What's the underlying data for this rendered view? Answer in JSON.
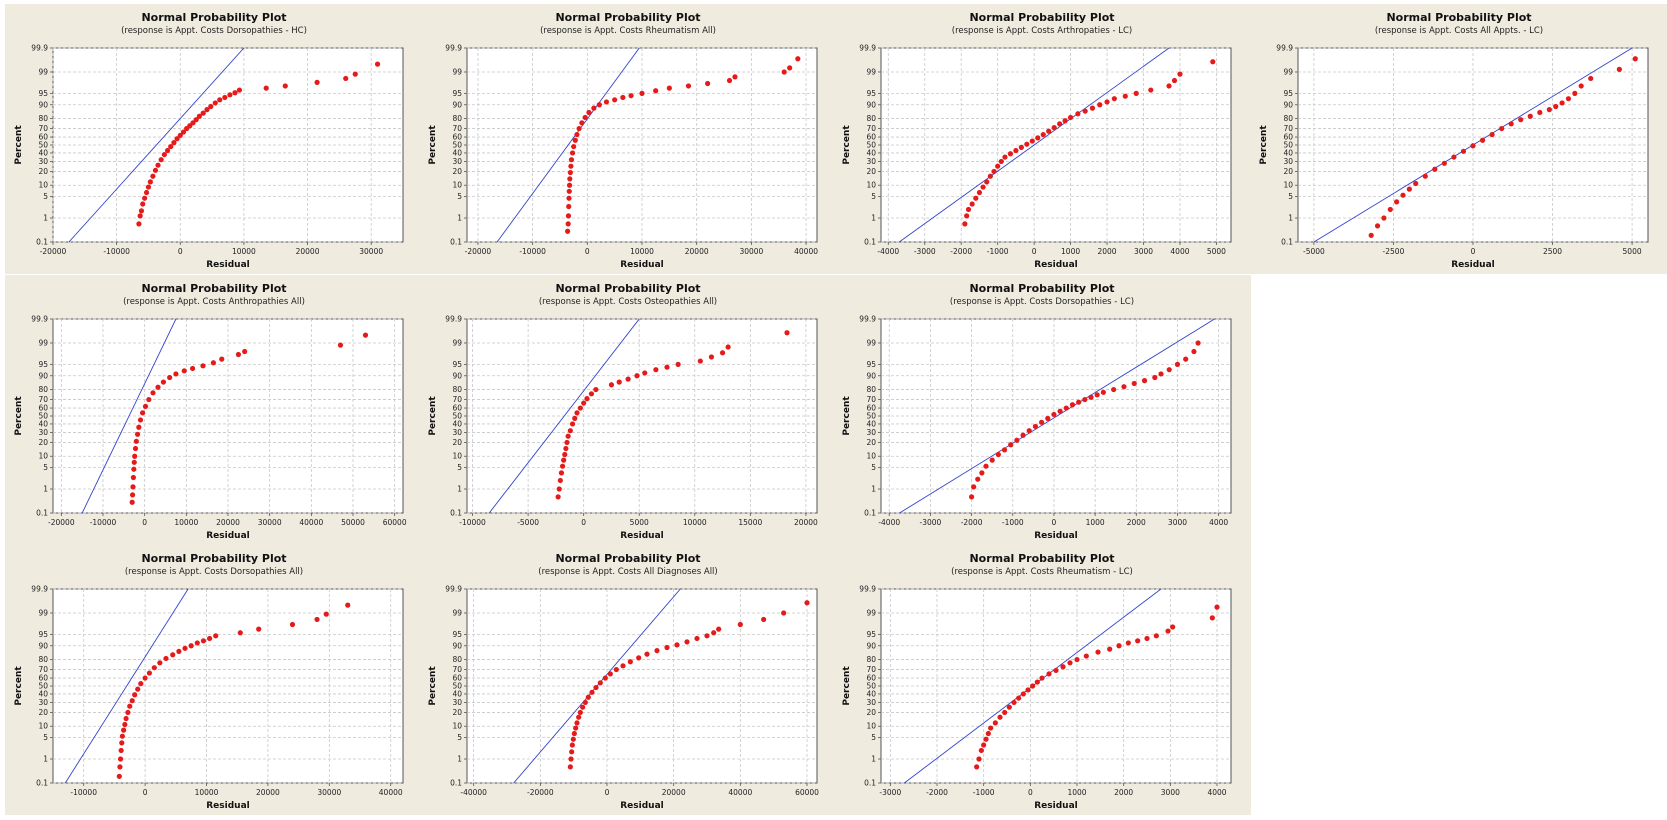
{
  "chart_data": [
    {
      "type": "scatter",
      "title": "Normal Probability Plot",
      "subtitle": "(response is Appt. Costs Dorsopathies - HC)",
      "xlabel": "Residual",
      "ylabel": "Percent",
      "xlim": [
        -20000,
        35000
      ],
      "xticks": [
        -20000,
        -10000,
        0,
        10000,
        20000,
        30000
      ],
      "ytick_labels": [
        "0.1",
        "1",
        "5",
        "10",
        "20",
        "30",
        "40",
        "50",
        "60",
        "70",
        "80",
        "90",
        "95",
        "99",
        "99.9"
      ],
      "grid": true,
      "line": {
        "x": [
          -17500,
          10000
        ],
        "y": [
          0.1,
          99.9
        ]
      },
      "points": {
        "x": [
          -6500,
          -6300,
          -6100,
          -5900,
          -5600,
          -5300,
          -5000,
          -4700,
          -4300,
          -3900,
          -3500,
          -3000,
          -2500,
          -2000,
          -1500,
          -1000,
          -500,
          0,
          500,
          1000,
          1500,
          2000,
          2500,
          3000,
          3600,
          4200,
          4800,
          5500,
          6200,
          7000,
          7800,
          8600,
          9300,
          13500,
          16500,
          21500,
          26000,
          27500,
          31000
        ],
        "y": [
          0.6,
          1.2,
          1.8,
          3,
          4.5,
          6.5,
          9,
          12,
          16,
          21,
          26,
          32,
          38,
          43,
          48,
          53,
          58,
          62,
          66,
          70,
          73,
          76,
          79,
          82,
          84.5,
          87,
          89,
          91,
          92.5,
          93.5,
          94.5,
          95.2,
          96,
          96.5,
          97,
          97.7,
          98.3,
          98.8,
          99.5
        ]
      }
    },
    {
      "type": "scatter",
      "title": "Normal Probability Plot",
      "subtitle": "(response is Appt. Costs Rheumatism All)",
      "xlabel": "Residual",
      "ylabel": "Percent",
      "xlim": [
        -22000,
        42000
      ],
      "xticks": [
        -20000,
        -10000,
        0,
        10000,
        20000,
        30000,
        40000
      ],
      "ytick_labels": [
        "0.1",
        "1",
        "5",
        "10",
        "20",
        "30",
        "40",
        "50",
        "60",
        "70",
        "80",
        "90",
        "95",
        "99",
        "99.9"
      ],
      "grid": true,
      "line": {
        "x": [
          -16500,
          9500
        ],
        "y": [
          0.1,
          99.9
        ]
      },
      "points": {
        "x": [
          -3600,
          -3500,
          -3450,
          -3400,
          -3350,
          -3300,
          -3250,
          -3200,
          -3100,
          -3000,
          -2900,
          -2700,
          -2500,
          -2200,
          -1900,
          -1500,
          -1000,
          -400,
          300,
          1200,
          2200,
          3500,
          5000,
          6500,
          8000,
          10000,
          12500,
          15000,
          18500,
          22000,
          26000,
          27000,
          36000,
          37000,
          38500
        ],
        "y": [
          0.3,
          0.6,
          1.2,
          2.5,
          4.5,
          7,
          10,
          14,
          19,
          25,
          32,
          40,
          48,
          56,
          63,
          70,
          76,
          81,
          85,
          88,
          90,
          91.5,
          92.5,
          93.5,
          94.2,
          95,
          95.8,
          96.5,
          97,
          97.5,
          98,
          98.5,
          99,
          99.3,
          99.7
        ]
      }
    },
    {
      "type": "scatter",
      "title": "Normal Probability Plot",
      "subtitle": "(response is Appt. Costs Arthropaties - LC)",
      "xlabel": "Residual",
      "ylabel": "Percent",
      "xlim": [
        -4200,
        5400
      ],
      "xticks": [
        -4000,
        -3000,
        -2000,
        -1000,
        0,
        1000,
        2000,
        3000,
        4000,
        5000
      ],
      "ytick_labels": [
        "0.1",
        "1",
        "5",
        "10",
        "20",
        "30",
        "40",
        "50",
        "60",
        "70",
        "80",
        "90",
        "95",
        "99",
        "99.9"
      ],
      "grid": true,
      "line": {
        "x": [
          -3700,
          3700
        ],
        "y": [
          0.1,
          99.9
        ]
      },
      "points": {
        "x": [
          -1900,
          -1850,
          -1800,
          -1700,
          -1600,
          -1500,
          -1400,
          -1300,
          -1200,
          -1100,
          -1000,
          -900,
          -800,
          -650,
          -500,
          -350,
          -200,
          -50,
          100,
          250,
          400,
          550,
          700,
          850,
          1000,
          1200,
          1400,
          1600,
          1800,
          2000,
          2200,
          2500,
          2800,
          3200,
          3700,
          3850,
          4000,
          4900
        ],
        "y": [
          0.6,
          1.2,
          2,
          3,
          4.5,
          6.5,
          9,
          12,
          16,
          20,
          25,
          30,
          35,
          39,
          43,
          47,
          51,
          55,
          59,
          63,
          67,
          71,
          75,
          78,
          81,
          84,
          86,
          88,
          90,
          91.5,
          93,
          94,
          95,
          96,
          97,
          98,
          98.8,
          99.6
        ]
      }
    },
    {
      "type": "scatter",
      "title": "Normal Probability Plot",
      "subtitle": "(response is Appt. Costs All Appts. - LC)",
      "xlabel": "Residual",
      "ylabel": "Percent",
      "xlim": [
        -5500,
        5500
      ],
      "xticks": [
        -5000,
        -2500,
        0,
        2500,
        5000
      ],
      "ytick_labels": [
        "0.1",
        "1",
        "5",
        "10",
        "20",
        "30",
        "40",
        "50",
        "60",
        "70",
        "80",
        "90",
        "95",
        "99",
        "99.9"
      ],
      "grid": true,
      "line": {
        "x": [
          -5000,
          5000
        ],
        "y": [
          0.1,
          99.9
        ]
      },
      "points": {
        "x": [
          -3200,
          -3000,
          -2800,
          -2600,
          -2400,
          -2200,
          -2000,
          -1800,
          -1500,
          -1200,
          -900,
          -600,
          -300,
          0,
          300,
          600,
          900,
          1200,
          1500,
          1800,
          2100,
          2400,
          2600,
          2800,
          3000,
          3200,
          3400,
          3700,
          4600,
          5100
        ],
        "y": [
          0.2,
          0.5,
          1,
          2,
          3.5,
          5.5,
          8,
          11,
          16,
          22,
          28,
          35,
          42,
          49,
          56,
          63,
          70,
          75,
          79,
          82,
          85,
          87,
          89,
          91,
          93,
          95,
          97,
          98.3,
          99.2,
          99.7
        ]
      }
    },
    {
      "type": "scatter",
      "title": "Normal Probability Plot",
      "subtitle": "(response is Appt. Costs Anthropathies All)",
      "xlabel": "Residual",
      "ylabel": "Percent",
      "xlim": [
        -22000,
        62000
      ],
      "xticks": [
        -20000,
        -10000,
        0,
        10000,
        20000,
        30000,
        40000,
        50000,
        60000
      ],
      "ytick_labels": [
        "0.1",
        "1",
        "5",
        "10",
        "20",
        "30",
        "40",
        "50",
        "60",
        "70",
        "80",
        "90",
        "95",
        "99",
        "99.9"
      ],
      "grid": true,
      "line": {
        "x": [
          -15000,
          7500
        ],
        "y": [
          0.1,
          99.9
        ]
      },
      "points": {
        "x": [
          -3000,
          -2900,
          -2800,
          -2700,
          -2600,
          -2500,
          -2400,
          -2200,
          -2000,
          -1700,
          -1400,
          -1000,
          -500,
          200,
          1000,
          2000,
          3200,
          4500,
          6000,
          7500,
          9500,
          11500,
          14000,
          16500,
          18500,
          22500,
          24000,
          47000,
          53000
        ],
        "y": [
          0.3,
          0.6,
          1.2,
          2.5,
          4.5,
          7,
          10,
          15,
          21,
          28,
          36,
          45,
          54,
          62,
          70,
          77,
          82,
          86,
          89,
          91,
          92.5,
          93.5,
          94.5,
          95.5,
          96.5,
          97.5,
          98,
          98.8,
          99.5
        ]
      }
    },
    {
      "type": "scatter",
      "title": "Normal Probability Plot",
      "subtitle": "(response is Appt. Costs Osteopathies All)",
      "xlabel": "Residual",
      "ylabel": "Percent",
      "xlim": [
        -10500,
        21000
      ],
      "xticks": [
        -10000,
        -5000,
        0,
        5000,
        10000,
        15000,
        20000
      ],
      "ytick_labels": [
        "0.1",
        "1",
        "5",
        "10",
        "20",
        "30",
        "40",
        "50",
        "60",
        "70",
        "80",
        "90",
        "95",
        "99",
        "99.9"
      ],
      "grid": true,
      "line": {
        "x": [
          -8500,
          5000
        ],
        "y": [
          0.1,
          99.9
        ]
      },
      "points": {
        "x": [
          -2300,
          -2200,
          -2100,
          -2000,
          -1900,
          -1800,
          -1700,
          -1600,
          -1500,
          -1400,
          -1200,
          -1000,
          -800,
          -600,
          -300,
          0,
          300,
          700,
          1100,
          2500,
          3200,
          4000,
          4800,
          5500,
          6500,
          7500,
          8500,
          10500,
          11500,
          12500,
          13000,
          18300
        ],
        "y": [
          0.5,
          1,
          2,
          3.5,
          5.5,
          8,
          11,
          15,
          20,
          26,
          32,
          40,
          47,
          54,
          60,
          66,
          71,
          76,
          80,
          84,
          86,
          88,
          90,
          91.5,
          93,
          94,
          95,
          96,
          97,
          97.8,
          98.6,
          99.6
        ]
      }
    },
    {
      "type": "scatter",
      "title": "Normal Probability Plot",
      "subtitle": "(response is Appt. Costs Dorsopathies - LC)",
      "xlabel": "Residual",
      "ylabel": "Percent",
      "xlim": [
        -4200,
        4300
      ],
      "xticks": [
        -4000,
        -3000,
        -2000,
        -1000,
        0,
        1000,
        2000,
        3000,
        4000
      ],
      "ytick_labels": [
        "0.1",
        "1",
        "5",
        "10",
        "20",
        "30",
        "40",
        "50",
        "60",
        "70",
        "80",
        "90",
        "95",
        "99",
        "99.9"
      ],
      "grid": true,
      "line": {
        "x": [
          -3750,
          3900
        ],
        "y": [
          0.1,
          99.9
        ]
      },
      "points": {
        "x": [
          -2000,
          -1950,
          -1850,
          -1750,
          -1650,
          -1500,
          -1350,
          -1200,
          -1050,
          -900,
          -750,
          -600,
          -450,
          -300,
          -150,
          0,
          150,
          300,
          450,
          600,
          750,
          900,
          1050,
          1200,
          1450,
          1700,
          1950,
          2200,
          2450,
          2600,
          2800,
          3000,
          3200,
          3400,
          3500
        ],
        "y": [
          0.5,
          1.2,
          2.2,
          3.5,
          5.5,
          8,
          11,
          14,
          18,
          22,
          27,
          32,
          37,
          42,
          47,
          52,
          56,
          60,
          64,
          67,
          70,
          72.5,
          75,
          77.5,
          80,
          82.5,
          85,
          87,
          89,
          91,
          93,
          95,
          96.5,
          98,
          99
        ]
      }
    },
    {
      "type": "scatter",
      "title": "Normal Probability Plot",
      "subtitle": "(response is Appt. Costs Dorsopathies All)",
      "xlabel": "Residual",
      "ylabel": "Percent",
      "xlim": [
        -15000,
        42000
      ],
      "xticks": [
        -10000,
        0,
        10000,
        20000,
        30000,
        40000
      ],
      "ytick_labels": [
        "0.1",
        "1",
        "5",
        "10",
        "20",
        "30",
        "40",
        "50",
        "60",
        "70",
        "80",
        "90",
        "95",
        "99",
        "99.9"
      ],
      "grid": true,
      "line": {
        "x": [
          -13000,
          7000
        ],
        "y": [
          0.1,
          99.9
        ]
      },
      "points": {
        "x": [
          -4200,
          -4100,
          -4000,
          -3900,
          -3800,
          -3700,
          -3500,
          -3300,
          -3100,
          -2800,
          -2500,
          -2100,
          -1700,
          -1200,
          -700,
          0,
          700,
          1500,
          2400,
          3400,
          4500,
          5500,
          6500,
          7500,
          8500,
          9500,
          10500,
          11500,
          15500,
          18500,
          24000,
          28000,
          29500,
          33000
        ],
        "y": [
          0.2,
          0.5,
          1,
          2,
          3.5,
          5.5,
          8,
          11,
          15,
          20,
          26,
          32,
          39,
          46,
          53,
          60,
          66,
          72,
          77,
          81,
          84,
          86.5,
          88.5,
          90,
          91.5,
          92.5,
          93.5,
          94.5,
          95.5,
          96.5,
          97.5,
          98.3,
          98.9,
          99.5
        ]
      }
    },
    {
      "type": "scatter",
      "title": "Normal Probability Plot",
      "subtitle": "(response is Appt. Costs All Diagnoses All)",
      "xlabel": "Residual",
      "ylabel": "Percent",
      "xlim": [
        -42000,
        63000
      ],
      "xticks": [
        -40000,
        -20000,
        0,
        20000,
        40000,
        60000
      ],
      "ytick_labels": [
        "0.1",
        "1",
        "5",
        "10",
        "20",
        "30",
        "40",
        "50",
        "60",
        "70",
        "80",
        "90",
        "95",
        "99",
        "99.9"
      ],
      "grid": true,
      "line": {
        "x": [
          -28000,
          22000
        ],
        "y": [
          0.1,
          99.9
        ]
      },
      "points": {
        "x": [
          -11000,
          -10800,
          -10600,
          -10400,
          -10100,
          -9800,
          -9400,
          -9000,
          -8500,
          -8000,
          -7300,
          -6500,
          -5600,
          -4500,
          -3300,
          -2000,
          -500,
          1000,
          2800,
          4800,
          7000,
          9500,
          12000,
          15000,
          18000,
          21000,
          24000,
          27000,
          30000,
          32000,
          33500,
          40000,
          47000,
          53000,
          60000
        ],
        "y": [
          0.5,
          1,
          1.8,
          3,
          4.5,
          6.5,
          9,
          12,
          16,
          20,
          25,
          30,
          36,
          42,
          48,
          54,
          60,
          65,
          70,
          74,
          78,
          81.5,
          84.5,
          87,
          89,
          90.5,
          92,
          93.5,
          94.5,
          95.5,
          96.5,
          97.5,
          98.3,
          99,
          99.6
        ]
      }
    },
    {
      "type": "scatter",
      "title": "Normal Probability Plot",
      "subtitle": "(response is Appt. Costs Rheumatism - LC)",
      "xlabel": "Residual",
      "ylabel": "Percent",
      "xlim": [
        -3200,
        4300
      ],
      "xticks": [
        -3000,
        -2000,
        -1000,
        0,
        1000,
        2000,
        3000,
        4000
      ],
      "ytick_labels": [
        "0.1",
        "1",
        "5",
        "10",
        "20",
        "30",
        "40",
        "50",
        "60",
        "70",
        "80",
        "90",
        "95",
        "99",
        "99.9"
      ],
      "grid": true,
      "line": {
        "x": [
          -2700,
          2800
        ],
        "y": [
          0.1,
          99.9
        ]
      },
      "points": {
        "x": [
          -1150,
          -1100,
          -1050,
          -1000,
          -950,
          -900,
          -850,
          -750,
          -650,
          -550,
          -450,
          -350,
          -250,
          -150,
          -50,
          50,
          150,
          250,
          400,
          550,
          700,
          850,
          1000,
          1200,
          1450,
          1700,
          1900,
          2100,
          2300,
          2500,
          2700,
          2950,
          3050,
          3900,
          4000
        ],
        "y": [
          0.5,
          1,
          2,
          3,
          4.5,
          6.5,
          9,
          12,
          16,
          20,
          25,
          30,
          35,
          40,
          45,
          50,
          55,
          60,
          65,
          69,
          73,
          77,
          80,
          83,
          86,
          88,
          90,
          91.5,
          92.5,
          93.5,
          94.5,
          96,
          97,
          98.5,
          99.4
        ]
      }
    }
  ]
}
